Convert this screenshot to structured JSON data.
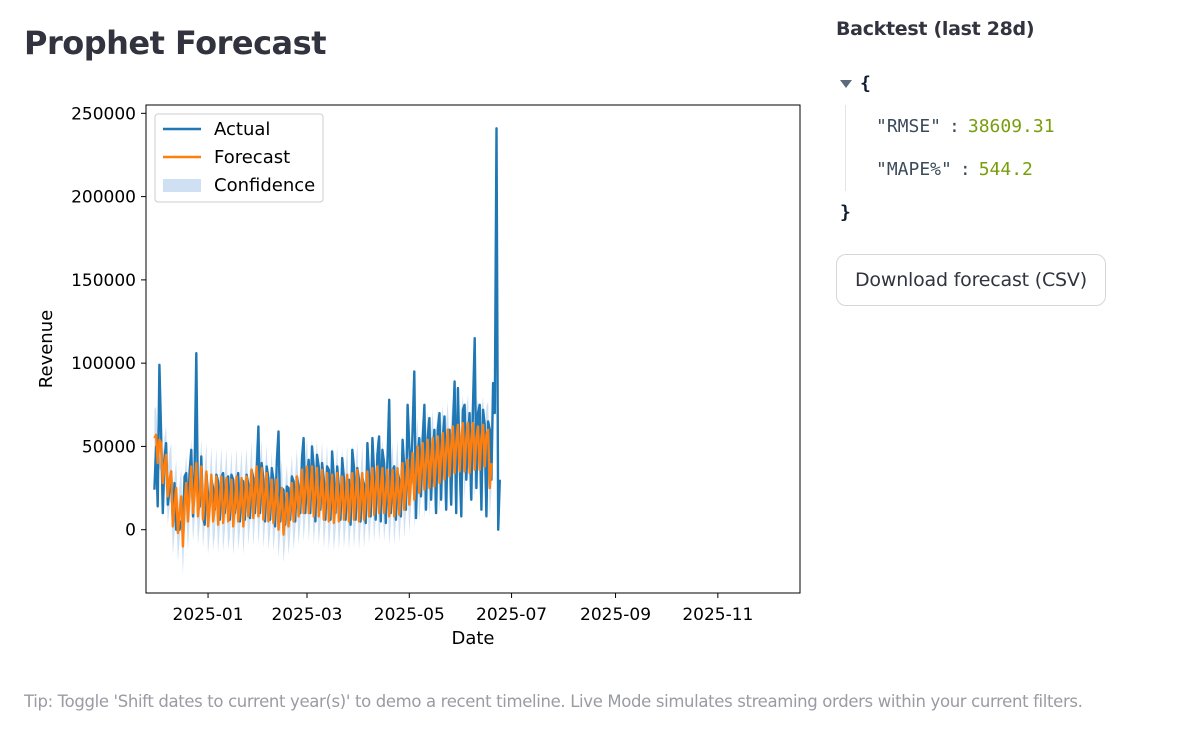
{
  "page": {
    "title": "Prophet Forecast"
  },
  "sidebar": {
    "title": "Backtest (last 28d)",
    "json_open": "{",
    "json_close": "}",
    "metrics": [
      {
        "key": "\"RMSE\"",
        "value": "38609.31"
      },
      {
        "key": "\"MAPE%\"",
        "value": "544.2"
      }
    ],
    "download_label": "Download forecast (CSV)"
  },
  "footer": {
    "tip": "Tip: Toggle 'Shift dates to current year(s)' to demo a recent timeline. Live Mode simulates streaming orders within your current filters."
  },
  "colors": {
    "actual": "#1f77b4",
    "forecast": "#ff7f0e",
    "confidence": "#c6dbee",
    "json_value": "#799e0b"
  },
  "chart_data": {
    "type": "line",
    "xlabel": "Date",
    "ylabel": "Revenue",
    "x_range": [
      "2024-11-25",
      "2025-12-20"
    ],
    "ylim": [
      -38000,
      255000
    ],
    "x_ticks": [
      "2025-01",
      "2025-03",
      "2025-05",
      "2025-07",
      "2025-09",
      "2025-11"
    ],
    "x_tick_dates": [
      "2025-01-01",
      "2025-03-01",
      "2025-05-01",
      "2025-07-01",
      "2025-09-01",
      "2025-11-01"
    ],
    "y_ticks": [
      0,
      50000,
      100000,
      150000,
      200000,
      250000
    ],
    "grid": false,
    "legend_position": "top-left",
    "legend": [
      "Actual",
      "Forecast",
      "Confidence"
    ],
    "start_date": "2024-11-30",
    "series": [
      {
        "name": "Actual",
        "values": [
          24000,
          50000,
          14000,
          99000,
          58000,
          10000,
          42000,
          52000,
          15000,
          24000,
          35000,
          5000,
          28000,
          0,
          0,
          0,
          5000,
          0,
          32000,
          34000,
          10000,
          35000,
          48000,
          8000,
          35000,
          106000,
          12000,
          14000,
          44000,
          8000,
          3000,
          34000,
          21000,
          14000,
          30000,
          25000,
          12000,
          33000,
          29000,
          6000,
          32000,
          34000,
          10000,
          30000,
          32000,
          6000,
          33000,
          30000,
          10000,
          27000,
          34000,
          5000,
          30000,
          29000,
          6000,
          33000,
          27000,
          7000,
          36000,
          31000,
          10000,
          34000,
          62000,
          10000,
          40000,
          30000,
          5000,
          38000,
          31000,
          6000,
          37000,
          30000,
          2000,
          41000,
          59000,
          5000,
          25000,
          24000,
          3000,
          26000,
          25000,
          6000,
          32000,
          29000,
          5000,
          32000,
          26000,
          10000,
          43000,
          55000,
          10000,
          30000,
          42000,
          10000,
          50000,
          38000,
          5000,
          45000,
          38000,
          12000,
          40000,
          30000,
          6000,
          38000,
          36000,
          6000,
          47000,
          32000,
          10000,
          38000,
          26000,
          6000,
          43000,
          31000,
          6000,
          30000,
          30000,
          3000,
          48000,
          38000,
          6000,
          37000,
          30000,
          5000,
          31000,
          27000,
          4000,
          52000,
          33000,
          8000,
          55000,
          34000,
          6000,
          45000,
          56000,
          5000,
          48000,
          40000,
          4000,
          42000,
          78000,
          10000,
          35000,
          38000,
          6000,
          35000,
          30000,
          8000,
          54000,
          38000,
          12000,
          75000,
          50000,
          28000,
          60000,
          95000,
          7000,
          45000,
          55000,
          20000,
          54000,
          75000,
          12000,
          55000,
          67000,
          18000,
          45000,
          60000,
          10000,
          60000,
          70000,
          18000,
          55000,
          68000,
          12000,
          60000,
          60000,
          15000,
          60000,
          89000,
          10000,
          85000,
          42000,
          8000,
          72000,
          75000,
          30000,
          55000,
          70000,
          18000,
          75000,
          115000,
          25000,
          70000,
          75000,
          12000,
          72000,
          63000,
          8000,
          65000,
          60000,
          30000,
          88000,
          70000,
          241000,
          0,
          30000
        ]
      },
      {
        "name": "Forecast",
        "values": [
          55000,
          57000,
          40000,
          54000,
          52000,
          28000,
          38000,
          45000,
          20000,
          30000,
          35000,
          2000,
          14000,
          25000,
          -2000,
          10000,
          20000,
          -10000,
          15000,
          28000,
          5000,
          22000,
          38000,
          10000,
          22000,
          40000,
          8000,
          20000,
          38000,
          6000,
          19000,
          35000,
          2000,
          14000,
          33000,
          5000,
          14000,
          32000,
          3000,
          18000,
          32000,
          4000,
          16000,
          31000,
          5000,
          13000,
          30000,
          2000,
          15000,
          32000,
          5000,
          15000,
          31000,
          2000,
          18000,
          32000,
          8000,
          20000,
          36000,
          7000,
          22000,
          38000,
          8000,
          22000,
          37000,
          6000,
          20000,
          34000,
          5000,
          15000,
          30000,
          4000,
          16000,
          30000,
          0,
          14000,
          25000,
          -3000,
          10000,
          22000,
          2000,
          14000,
          28000,
          5000,
          16000,
          32000,
          8000,
          20000,
          36000,
          10000,
          24000,
          38000,
          10000,
          24000,
          38000,
          8000,
          22000,
          37000,
          8000,
          20000,
          36000,
          6000,
          18000,
          34000,
          5000,
          18000,
          33000,
          4000,
          16000,
          34000,
          5000,
          18000,
          32000,
          6000,
          18000,
          33000,
          5000,
          18000,
          34000,
          6000,
          20000,
          36000,
          5000,
          18000,
          34000,
          6000,
          20000,
          35000,
          8000,
          22000,
          37000,
          9000,
          24000,
          38000,
          10000,
          24000,
          37000,
          10000,
          22000,
          36000,
          8000,
          20000,
          36000,
          8000,
          22000,
          37000,
          9000,
          24000,
          40000,
          12000,
          26000,
          42000,
          15000,
          30000,
          46000,
          18000,
          34000,
          50000,
          22000,
          38000,
          52000,
          24000,
          40000,
          54000,
          25000,
          42000,
          55000,
          26000,
          42000,
          56000,
          28000,
          45000,
          58000,
          30000,
          48000,
          60000,
          32000,
          50000,
          62000,
          34000,
          52000,
          63000,
          35000,
          54000,
          64000,
          35000,
          55000,
          64000,
          34000,
          54000,
          64000,
          36000,
          55000,
          62000,
          36000,
          55000,
          63000,
          38000,
          57000,
          60000,
          25000,
          40000
        ]
      },
      {
        "name": "Confidence",
        "lower": [
          38000,
          40000,
          23000,
          37000,
          35000,
          11000,
          21000,
          28000,
          3000,
          13000,
          18000,
          -15000,
          -3000,
          8000,
          -19000,
          -7000,
          3000,
          -27000,
          -2000,
          11000,
          -12000,
          5000,
          21000,
          -7000,
          5000,
          23000,
          -9000,
          3000,
          21000,
          -11000,
          2000,
          18000,
          -15000,
          -3000,
          16000,
          -12000,
          -3000,
          15000,
          -14000,
          1000,
          15000,
          -13000,
          -1000,
          14000,
          -12000,
          -4000,
          13000,
          -15000,
          -2000,
          15000,
          -12000,
          -2000,
          14000,
          -15000,
          1000,
          15000,
          -9000,
          3000,
          19000,
          -10000,
          5000,
          21000,
          -9000,
          5000,
          20000,
          -11000,
          3000,
          17000,
          -12000,
          -2000,
          13000,
          -13000,
          -1000,
          13000,
          -17000,
          -3000,
          8000,
          -20000,
          -7000,
          5000,
          -15000,
          -3000,
          11000,
          -12000,
          -1000,
          15000,
          -9000,
          3000,
          19000,
          -7000,
          7000,
          21000,
          -7000,
          7000,
          21000,
          -9000,
          5000,
          20000,
          -9000,
          3000,
          19000,
          -11000,
          1000,
          17000,
          -12000,
          1000,
          16000,
          -13000,
          -1000,
          17000,
          -12000,
          1000,
          15000,
          -11000,
          1000,
          16000,
          -12000,
          1000,
          17000,
          -11000,
          3000,
          19000,
          -12000,
          1000,
          17000,
          -11000,
          3000,
          18000,
          -9000,
          5000,
          20000,
          -8000,
          7000,
          21000,
          -7000,
          7000,
          20000,
          -7000,
          5000,
          19000,
          -9000,
          3000,
          19000,
          -9000,
          5000,
          20000,
          -8000,
          7000,
          23000,
          -5000,
          9000,
          25000,
          -2000,
          13000,
          29000,
          1000,
          17000,
          33000,
          5000,
          21000,
          35000,
          7000,
          23000,
          37000,
          8000,
          25000,
          38000,
          9000,
          25000,
          39000,
          11000,
          28000,
          41000,
          13000,
          31000,
          43000,
          15000,
          33000,
          45000,
          17000,
          35000,
          46000,
          18000,
          37000,
          47000,
          18000,
          38000,
          47000,
          17000,
          37000,
          47000,
          19000,
          38000,
          45000,
          19000,
          38000,
          46000,
          21000,
          40000,
          43000,
          8000,
          23000
        ],
        "upper": [
          72000,
          74000,
          57000,
          71000,
          69000,
          45000,
          55000,
          62000,
          37000,
          47000,
          52000,
          19000,
          31000,
          42000,
          15000,
          27000,
          37000,
          7000,
          32000,
          45000,
          22000,
          39000,
          55000,
          27000,
          39000,
          57000,
          25000,
          37000,
          55000,
          23000,
          36000,
          52000,
          19000,
          31000,
          50000,
          22000,
          31000,
          49000,
          20000,
          35000,
          49000,
          21000,
          33000,
          48000,
          22000,
          30000,
          47000,
          19000,
          32000,
          49000,
          22000,
          32000,
          48000,
          19000,
          35000,
          49000,
          25000,
          37000,
          53000,
          24000,
          39000,
          55000,
          25000,
          39000,
          54000,
          23000,
          37000,
          51000,
          22000,
          32000,
          47000,
          21000,
          33000,
          47000,
          17000,
          31000,
          42000,
          14000,
          27000,
          39000,
          19000,
          31000,
          45000,
          22000,
          33000,
          49000,
          25000,
          37000,
          53000,
          27000,
          41000,
          55000,
          27000,
          41000,
          55000,
          25000,
          39000,
          54000,
          25000,
          37000,
          53000,
          23000,
          35000,
          51000,
          22000,
          35000,
          50000,
          21000,
          33000,
          51000,
          22000,
          35000,
          49000,
          23000,
          35000,
          50000,
          22000,
          35000,
          51000,
          23000,
          37000,
          53000,
          22000,
          35000,
          51000,
          23000,
          37000,
          52000,
          25000,
          39000,
          54000,
          26000,
          41000,
          55000,
          27000,
          41000,
          54000,
          27000,
          39000,
          53000,
          25000,
          37000,
          53000,
          25000,
          39000,
          54000,
          26000,
          41000,
          57000,
          29000,
          43000,
          59000,
          32000,
          47000,
          63000,
          35000,
          51000,
          67000,
          39000,
          55000,
          69000,
          41000,
          57000,
          71000,
          42000,
          59000,
          72000,
          43000,
          59000,
          73000,
          45000,
          62000,
          75000,
          47000,
          65000,
          77000,
          49000,
          67000,
          79000,
          51000,
          69000,
          80000,
          52000,
          71000,
          81000,
          52000,
          72000,
          81000,
          51000,
          71000,
          81000,
          53000,
          72000,
          79000,
          53000,
          72000,
          80000,
          55000,
          74000,
          77000,
          42000,
          57000
        ]
      }
    ]
  }
}
